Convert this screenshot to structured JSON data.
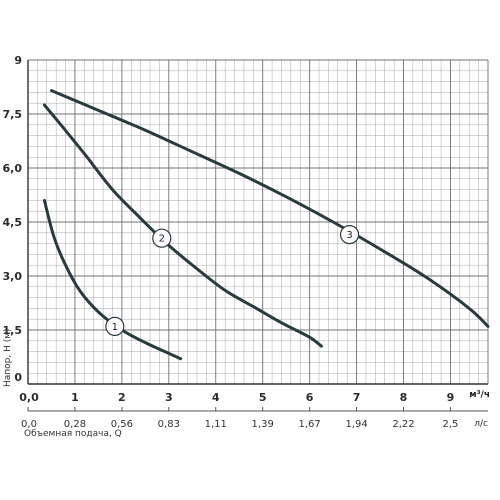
{
  "chart_data": {
    "type": "line",
    "xlabel": "Объемная подача, Q",
    "ylabel": "Напор, Н (м)",
    "x_unit": "м³/ч",
    "x2_unit": "л/с",
    "xlim": [
      0,
      9.8
    ],
    "ylim": [
      0,
      9
    ],
    "grid": true,
    "x_ticks": [
      "0,0",
      "1",
      "2",
      "3",
      "4",
      "5",
      "6",
      "7",
      "8",
      "9"
    ],
    "x_ticks_values": [
      0,
      1,
      2,
      3,
      4,
      5,
      6,
      7,
      8,
      9
    ],
    "x2_ticks": [
      "0,0",
      "0,28",
      "0,56",
      "0,83",
      "1,11",
      "1,39",
      "1,67",
      "1,94",
      "2,22",
      "2,5"
    ],
    "y_ticks": [
      "0",
      "1,5",
      "3,0",
      "4,5",
      "6,0",
      "7,5",
      "9"
    ],
    "y_ticks_values": [
      0,
      1.5,
      3,
      4.5,
      6,
      7.5,
      9
    ],
    "series": [
      {
        "name": "1",
        "color": "#2a3b40",
        "label_at": [
          1.85,
          1.6
        ],
        "points": [
          [
            0.35,
            5.1
          ],
          [
            0.55,
            4.1
          ],
          [
            0.8,
            3.3
          ],
          [
            1.1,
            2.6
          ],
          [
            1.5,
            2.0
          ],
          [
            2.0,
            1.5
          ],
          [
            2.5,
            1.15
          ],
          [
            3.0,
            0.85
          ],
          [
            3.25,
            0.7
          ]
        ]
      },
      {
        "name": "2",
        "color": "#2a3b40",
        "label_at": [
          2.85,
          4.05
        ],
        "points": [
          [
            0.35,
            7.75
          ],
          [
            0.7,
            7.2
          ],
          [
            1.2,
            6.4
          ],
          [
            1.8,
            5.4
          ],
          [
            2.4,
            4.6
          ],
          [
            3.0,
            3.85
          ],
          [
            3.6,
            3.2
          ],
          [
            4.2,
            2.6
          ],
          [
            4.8,
            2.15
          ],
          [
            5.4,
            1.7
          ],
          [
            6.0,
            1.3
          ],
          [
            6.25,
            1.05
          ]
        ]
      },
      {
        "name": "3",
        "color": "#2a3b40",
        "label_at": [
          6.85,
          4.15
        ],
        "points": [
          [
            0.5,
            8.15
          ],
          [
            1.5,
            7.6
          ],
          [
            2.5,
            7.05
          ],
          [
            3.5,
            6.45
          ],
          [
            4.5,
            5.85
          ],
          [
            5.5,
            5.2
          ],
          [
            6.5,
            4.5
          ],
          [
            7.5,
            3.75
          ],
          [
            8.5,
            2.95
          ],
          [
            9.4,
            2.1
          ],
          [
            9.8,
            1.6
          ]
        ]
      }
    ]
  }
}
